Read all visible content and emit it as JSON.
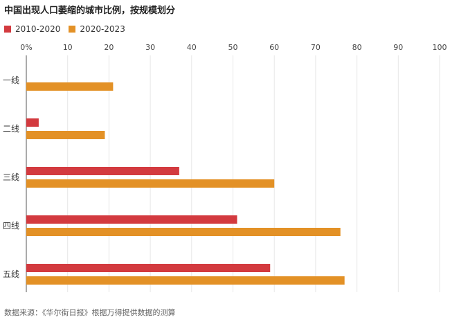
{
  "title": "中国出现人口萎缩的城市比例，按规模划分",
  "source": "数据来源：《华尔街日报》根据万得提供数据的测算",
  "colors": {
    "series1": "#d33a3f",
    "series2": "#e39126",
    "grid": "#e6e6e6",
    "axis": "#555555"
  },
  "chart_data": {
    "type": "bar",
    "orientation": "horizontal",
    "title": "中国出现人口萎缩的城市比例，按规模划分",
    "categories": [
      "一线",
      "二线",
      "三线",
      "四线",
      "五线"
    ],
    "series": [
      {
        "name": "2010-2020",
        "values": [
          0,
          3,
          37,
          51,
          59
        ]
      },
      {
        "name": "2020-2023",
        "values": [
          21,
          19,
          60,
          76,
          77
        ]
      }
    ],
    "xlim": [
      0,
      100
    ],
    "xticks": [
      "0%",
      "10",
      "20",
      "30",
      "40",
      "50",
      "60",
      "70",
      "80",
      "90",
      "100"
    ],
    "grid": true,
    "legend": "top-left"
  }
}
